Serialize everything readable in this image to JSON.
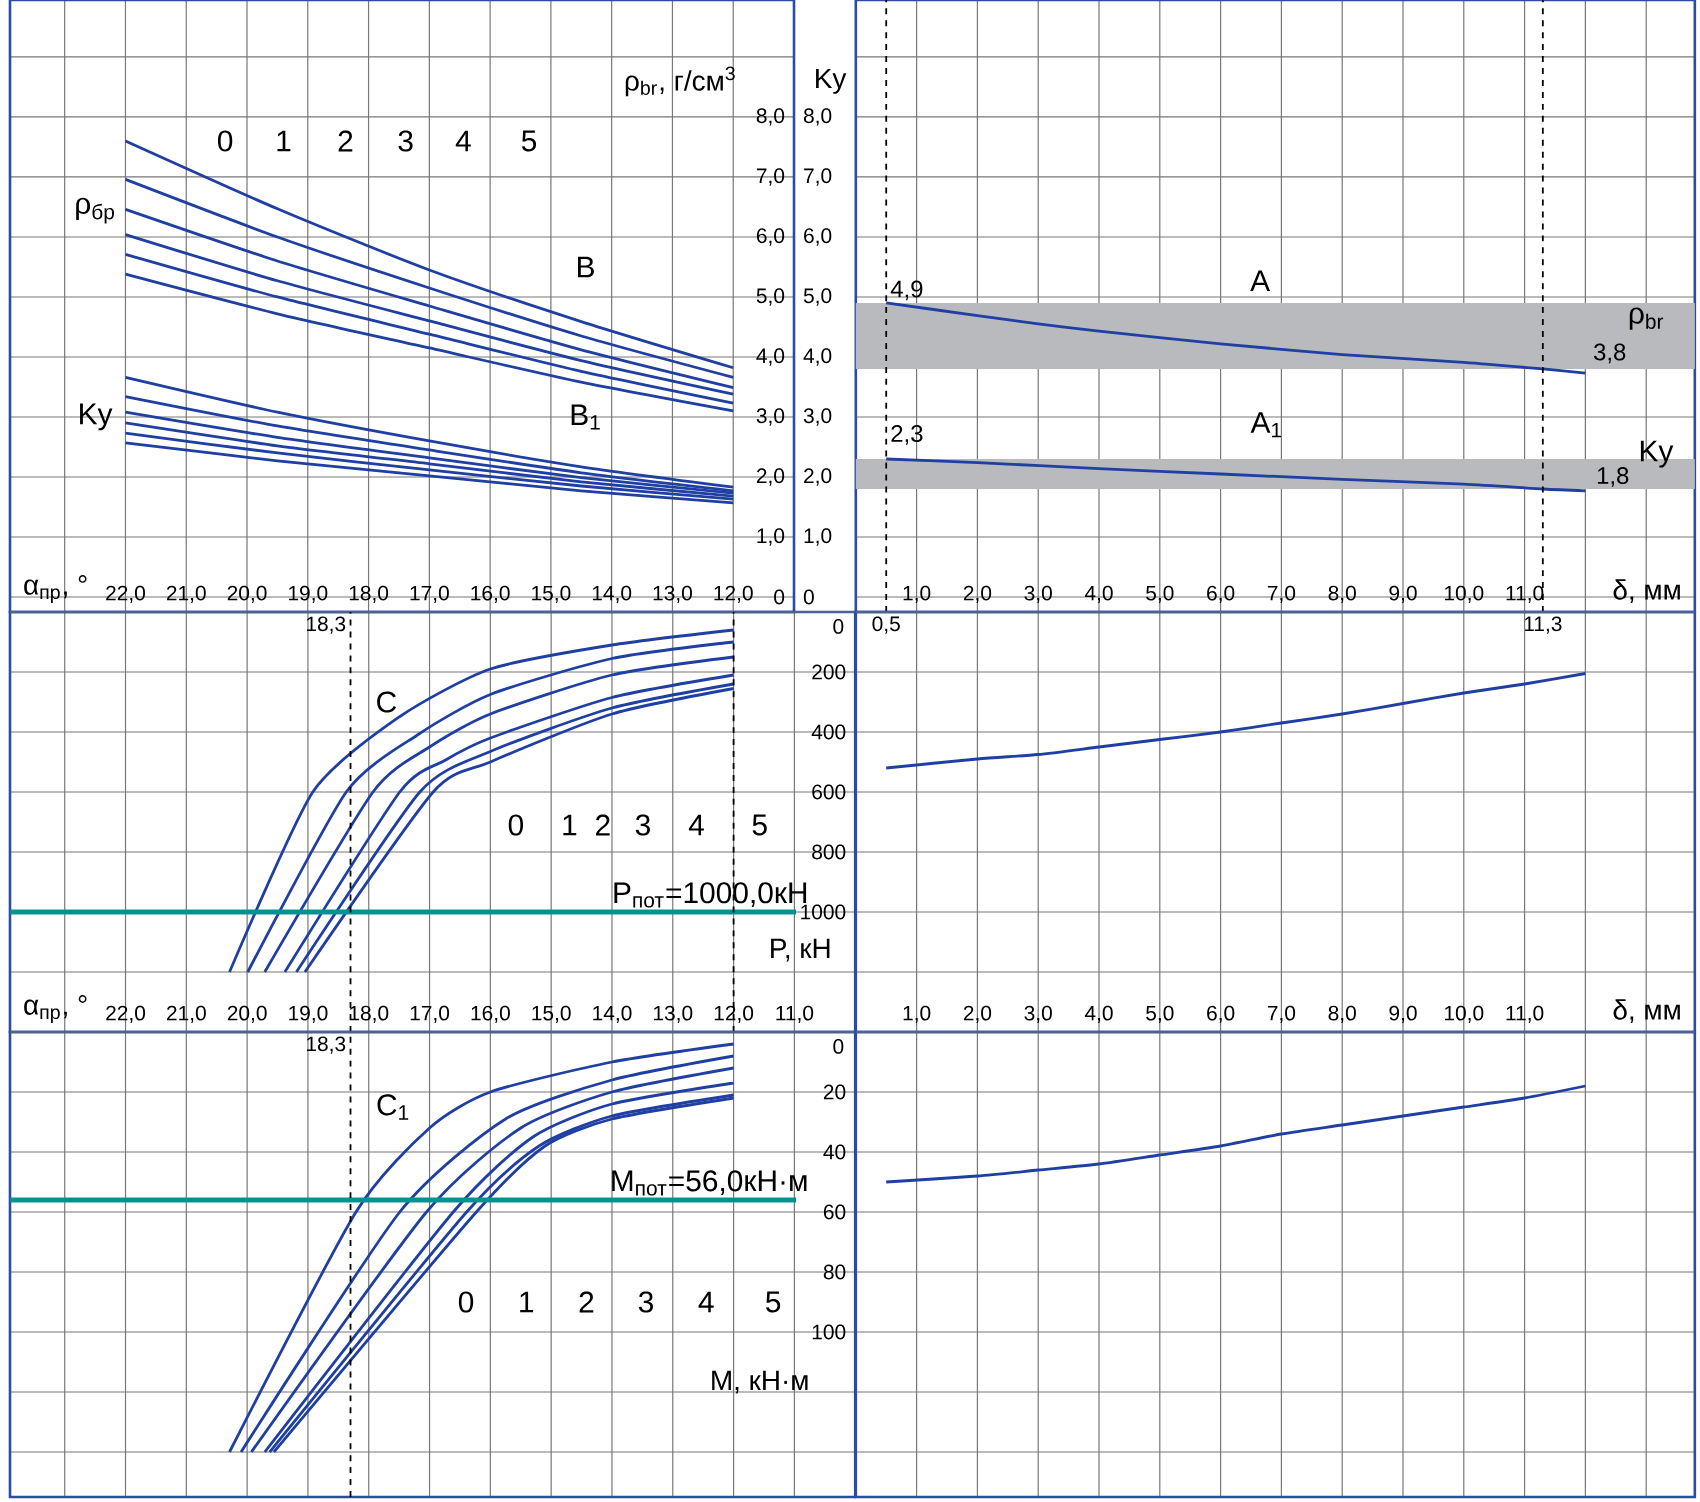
{
  "chart_data": [
    {
      "type": "line",
      "xlabel": "α$_{пр}$, °",
      "ylabel": "ρ$_{br}$, г/см$^{3}$",
      "y2label": "Ky",
      "grid": true,
      "marker": "none",
      "xlim": [
        23.9,
        11.0
      ],
      "ylim": [
        -0.25,
        9.95
      ],
      "y2lim": [
        -0.25,
        9.95
      ],
      "xticks": [
        {
          "value": 23,
          "label": null
        },
        {
          "value": 22,
          "label": "22,0"
        },
        {
          "value": 21,
          "label": "21,0"
        },
        {
          "value": 20,
          "label": "20,0"
        },
        {
          "value": 19,
          "label": "19,0"
        },
        {
          "value": 18,
          "label": "18,0"
        },
        {
          "value": 17,
          "label": "17,0"
        },
        {
          "value": 16,
          "label": "16,0"
        },
        {
          "value": 15,
          "label": "15,0"
        },
        {
          "value": 14,
          "label": "14,0"
        },
        {
          "value": 13,
          "label": "13,0"
        },
        {
          "value": 12,
          "label": "12,0"
        }
      ],
      "yticks": [
        0,
        {
          "value": 1,
          "label": "1,0"
        },
        {
          "value": 2,
          "label": "2,0"
        },
        {
          "value": 3,
          "label": "3,0"
        },
        {
          "value": 4,
          "label": "4,0"
        },
        {
          "value": 5,
          "label": "5,0"
        },
        {
          "value": 6,
          "label": "6,0"
        },
        {
          "value": 7,
          "label": "7,0"
        },
        {
          "value": 8,
          "label": "8,0"
        },
        {
          "value": 9,
          "label": null
        }
      ],
      "y2ticks": [
        0,
        {
          "value": 1,
          "label": "1,0"
        },
        {
          "value": 2,
          "label": "2,0"
        },
        {
          "value": 3,
          "label": "3,0"
        },
        {
          "value": 4,
          "label": "4,0"
        },
        {
          "value": 5,
          "label": "5,0"
        },
        {
          "value": 6,
          "label": "6,0"
        },
        {
          "value": 7,
          "label": "7,0"
        },
        {
          "value": 8,
          "label": "8,0"
        }
      ],
      "series": [
        {
          "color": "#1f3fa3",
          "x": [
            22,
            19.5,
            17,
            14.5,
            12
          ],
          "values": [
            7.6,
            6.47,
            5.45,
            4.59,
            3.82
          ]
        },
        {
          "color": "#1f3fa3",
          "x": [
            22,
            19.5,
            17,
            14.5,
            12
          ],
          "values": [
            6.96,
            6.0,
            5.15,
            4.35,
            3.66
          ]
        },
        {
          "color": "#1f3fa3",
          "x": [
            22,
            19.5,
            17,
            14.5,
            12
          ],
          "values": [
            6.46,
            5.6,
            4.85,
            4.12,
            3.49
          ]
        },
        {
          "color": "#1f3fa3",
          "x": [
            22,
            19.5,
            17,
            14.5,
            12
          ],
          "values": [
            6.04,
            5.27,
            4.6,
            3.94,
            3.38
          ]
        },
        {
          "color": "#1f3fa3",
          "x": [
            22,
            19.5,
            17,
            14.5,
            12
          ],
          "values": [
            5.71,
            5.0,
            4.38,
            3.76,
            3.23
          ]
        },
        {
          "color": "#1f3fa3",
          "x": [
            22,
            19.5,
            17,
            14.5,
            12
          ],
          "values": [
            5.38,
            4.72,
            4.15,
            3.58,
            3.1
          ]
        },
        {
          "color": "#1f3fa3",
          "axis": "y2",
          "x": [
            22,
            19.5,
            17,
            14.5,
            12
          ],
          "values": [
            3.66,
            3.08,
            2.6,
            2.17,
            1.83
          ]
        },
        {
          "color": "#1f3fa3",
          "axis": "y2",
          "x": [
            22,
            19.5,
            17,
            14.5,
            12
          ],
          "values": [
            3.34,
            2.85,
            2.45,
            2.07,
            1.77
          ]
        },
        {
          "color": "#1f3fa3",
          "axis": "y2",
          "x": [
            22,
            19.5,
            17,
            14.5,
            12
          ],
          "values": [
            3.08,
            2.66,
            2.32,
            1.99,
            1.73
          ]
        },
        {
          "color": "#1f3fa3",
          "axis": "y2",
          "x": [
            22,
            19.5,
            17,
            14.5,
            12
          ],
          "values": [
            2.9,
            2.52,
            2.22,
            1.92,
            1.68
          ]
        },
        {
          "color": "#1f3fa3",
          "axis": "y2",
          "x": [
            22,
            19.5,
            17,
            14.5,
            12
          ],
          "values": [
            2.73,
            2.4,
            2.12,
            1.85,
            1.63
          ]
        },
        {
          "color": "#1f3fa3",
          "axis": "y2",
          "x": [
            22,
            19.5,
            17,
            14.5,
            12
          ],
          "values": [
            2.57,
            2.27,
            2.02,
            1.77,
            1.57
          ]
        }
      ],
      "annotations": [
        "0",
        "1",
        "2",
        "3",
        "4",
        "5",
        "B",
        "B$_{1}$",
        "ρ$_{бр}$",
        "Ky"
      ]
    },
    {
      "type": "line",
      "xlabel": "δ, мм",
      "grid": true,
      "marker": "none",
      "tick_labels": "x",
      "xlim": [
        0,
        13.8
      ],
      "ylim": [
        -0.25,
        9.95
      ],
      "xticks": [
        {
          "value": 1,
          "label": "1,0"
        },
        {
          "value": 2,
          "label": "2,0"
        },
        {
          "value": 3,
          "label": "3,0"
        },
        {
          "value": 4,
          "label": "4,0"
        },
        {
          "value": 5,
          "label": "5,0"
        },
        {
          "value": 6,
          "label": "6,0"
        },
        {
          "value": 7,
          "label": "7,0"
        },
        {
          "value": 8,
          "label": "8,0"
        },
        {
          "value": 9,
          "label": "9,0"
        },
        {
          "value": 10,
          "label": "10,0"
        },
        {
          "value": 11,
          "label": "11,0"
        },
        {
          "value": 12,
          "label": null
        },
        {
          "value": 13,
          "label": null
        }
      ],
      "yticks": [
        0,
        1,
        2,
        3,
        4,
        5,
        6,
        7,
        8,
        9
      ],
      "series": [
        {
          "color": "#1f3fa3",
          "x": [
            0.5,
            2,
            3,
            4,
            6,
            8,
            10,
            11.3,
            12
          ],
          "values": [
            4.9,
            4.69,
            4.55,
            4.43,
            4.22,
            4.04,
            3.91,
            3.8,
            3.73
          ]
        },
        {
          "color": "#1f3fa3",
          "x": [
            0.5,
            2,
            4,
            6,
            8,
            10,
            11.3,
            12
          ],
          "values": [
            2.3,
            2.24,
            2.14,
            2.05,
            1.96,
            1.88,
            1.8,
            1.77
          ]
        }
      ],
      "bands": [
        {
          "axis": "y",
          "from": 3.8,
          "to": 4.9,
          "color": "#b9babd"
        },
        {
          "axis": "y",
          "from": 1.8,
          "to": 2.3,
          "color": "#b9babd"
        }
      ],
      "ref_lines": [
        {
          "axis": "x",
          "value": 0.5,
          "label": "0,5",
          "line_style": "dashed"
        },
        {
          "axis": "x",
          "value": 11.3,
          "label": "11,3",
          "line_style": "dashed"
        }
      ],
      "annotations": [
        "4,9",
        "3,8",
        "2,3",
        "1,8",
        "A",
        "A$_{1}$",
        "ρ$_{br}$",
        "Ky"
      ]
    },
    {
      "type": "line",
      "xlabel": "α$_{пр}$, °",
      "ylabel": "P, кН",
      "grid": true,
      "marker": "none",
      "xlim": [
        23.9,
        10.0
      ],
      "ylim": [
        1400,
        0
      ],
      "xticks": [
        {
          "value": 23,
          "label": null
        },
        {
          "value": 22,
          "label": "22,0"
        },
        {
          "value": 21,
          "label": "21,0"
        },
        {
          "value": 20,
          "label": "20,0"
        },
        {
          "value": 19,
          "label": "19,0"
        },
        {
          "value": 18,
          "label": "18,0"
        },
        {
          "value": 17,
          "label": "17,0"
        },
        {
          "value": 16,
          "label": "16,0"
        },
        {
          "value": 15,
          "label": "15,0"
        },
        {
          "value": 14,
          "label": "14,0"
        },
        {
          "value": 13,
          "label": "13,0"
        },
        {
          "value": 12,
          "label": "12,0"
        },
        {
          "value": 11,
          "label": "11,0"
        }
      ],
      "yticks": [
        0,
        200,
        400,
        600,
        800,
        1000,
        {
          "value": 1200,
          "label": null
        }
      ],
      "series": [
        {
          "color": "#1f3fa3",
          "x": [
            20.29,
            18.92,
            17.5,
            16,
            14,
            12
          ],
          "values": [
            1200,
            600,
            350,
            190,
            110,
            60
          ]
        },
        {
          "color": "#1f3fa3",
          "x": [
            19.99,
            18.37,
            17.2,
            16,
            14,
            12
          ],
          "values": [
            1200,
            600,
            410,
            275,
            155,
            100
          ]
        },
        {
          "color": "#1f3fa3",
          "x": [
            19.71,
            17.93,
            17.0,
            16,
            14,
            12
          ],
          "values": [
            1200,
            600,
            450,
            340,
            210,
            150
          ]
        },
        {
          "color": "#1f3fa3",
          "x": [
            19.38,
            17.49,
            16.75,
            16,
            14,
            12
          ],
          "values": [
            1200,
            600,
            495,
            420,
            285,
            210
          ]
        },
        {
          "color": "#1f3fa3",
          "x": [
            19.19,
            17.16,
            16,
            14,
            12
          ],
          "values": [
            1200,
            600,
            465,
            320,
            240
          ]
        },
        {
          "color": "#1f3fa3",
          "x": [
            19.05,
            16.94,
            16,
            14,
            12
          ],
          "values": [
            1200,
            600,
            500,
            340,
            255
          ]
        }
      ],
      "ref_lines": [
        {
          "axis": "y",
          "value": 1000,
          "label": "P$_{пот}$=1000,0кН",
          "color": "#00938f"
        },
        {
          "axis": "x",
          "value": 18.3,
          "label": "18,3",
          "line_style": "dashed"
        },
        {
          "axis": "x",
          "value": 12,
          "line_style": "dashed"
        }
      ],
      "annotations": [
        "C",
        "0",
        "1",
        "2",
        "3",
        "4",
        "5"
      ]
    },
    {
      "type": "line",
      "xlabel": "δ, мм",
      "grid": true,
      "marker": "none",
      "tick_labels": "x",
      "xlim": [
        0,
        13.8
      ],
      "ylim": [
        1400,
        0
      ],
      "xticks": [
        {
          "value": 1,
          "label": "1,0"
        },
        {
          "value": 2,
          "label": "2,0"
        },
        {
          "value": 3,
          "label": "3,0"
        },
        {
          "value": 4,
          "label": "4,0"
        },
        {
          "value": 5,
          "label": "5,0"
        },
        {
          "value": 6,
          "label": "6,0"
        },
        {
          "value": 7,
          "label": "7,0"
        },
        {
          "value": 8,
          "label": "8,0"
        },
        {
          "value": 9,
          "label": "9,0"
        },
        {
          "value": 10,
          "label": "10,0"
        },
        {
          "value": 11,
          "label": "11,0"
        },
        {
          "value": 12,
          "label": null
        },
        {
          "value": 13,
          "label": null
        }
      ],
      "yticks": [
        0,
        200,
        400,
        600,
        800,
        1000,
        {
          "value": 1200,
          "label": null
        }
      ],
      "series": [
        {
          "color": "#1f3fa3",
          "x": [
            0.5,
            2,
            3,
            4,
            5,
            6,
            7,
            8,
            9,
            10,
            11,
            12
          ],
          "values": [
            520,
            490,
            475,
            450,
            425,
            400,
            370,
            340,
            305,
            270,
            240,
            205
          ]
        }
      ]
    },
    {
      "type": "line",
      "ylabel": "M, кН·м",
      "grid": true,
      "marker": "none",
      "tick_labels": "y",
      "xlim": [
        23.9,
        10.0
      ],
      "ylim": [
        155,
        0
      ],
      "xticks": [
        23,
        22,
        21,
        20,
        19,
        18,
        17,
        16,
        15,
        14,
        13,
        12,
        11
      ],
      "yticks": [
        0,
        20,
        40,
        60,
        80,
        100,
        {
          "value": 120,
          "label": null
        },
        {
          "value": 140,
          "label": null
        }
      ],
      "series": [
        {
          "color": "#1f3fa3",
          "x": [
            20.29,
            18.21,
            17,
            16,
            14,
            12
          ],
          "values": [
            140,
            60,
            32,
            20,
            10,
            4
          ]
        },
        {
          "color": "#1f3fa3",
          "x": [
            20.1,
            17.49,
            15.75,
            14,
            12
          ],
          "values": [
            140,
            60,
            29,
            16,
            8
          ]
        },
        {
          "color": "#1f3fa3",
          "x": [
            19.93,
            17.05,
            15.5,
            14,
            12
          ],
          "values": [
            140,
            60,
            32,
            20,
            12
          ]
        },
        {
          "color": "#1f3fa3",
          "x": [
            19.71,
            16.61,
            15.3,
            14,
            12
          ],
          "values": [
            140,
            60,
            35,
            24,
            17
          ]
        },
        {
          "color": "#1f3fa3",
          "x": [
            19.63,
            16.39,
            15.2,
            14,
            12
          ],
          "values": [
            140,
            60,
            38,
            28,
            21
          ]
        },
        {
          "color": "#1f3fa3",
          "x": [
            19.56,
            16.23,
            15.1,
            14,
            12
          ],
          "values": [
            140,
            60,
            38,
            29,
            22
          ]
        }
      ],
      "ref_lines": [
        {
          "axis": "y",
          "value": 56,
          "label": "M$_{пот}$=56,0кН·м",
          "color": "#00938f"
        },
        {
          "axis": "x",
          "value": 18.3,
          "label": "18,3",
          "line_style": "dashed"
        }
      ],
      "annotations": [
        "C$_{1}$",
        "0",
        "1",
        "2",
        "3",
        "4",
        "5"
      ]
    },
    {
      "type": "line",
      "grid": true,
      "marker": "none",
      "tick_labels": false,
      "xlim": [
        0,
        13.8
      ],
      "ylim": [
        155,
        0
      ],
      "xticks": [
        1,
        2,
        3,
        4,
        5,
        6,
        7,
        8,
        9,
        10,
        11,
        12,
        13
      ],
      "yticks": [
        0,
        20,
        40,
        60,
        80,
        100,
        120,
        140
      ],
      "series": [
        {
          "color": "#1f3fa3",
          "x": [
            0.5,
            2,
            3,
            4,
            5,
            6,
            7,
            8,
            9,
            10,
            11,
            12
          ],
          "values": [
            50,
            48,
            46,
            44,
            41,
            38,
            34,
            31,
            28,
            25,
            22,
            18
          ]
        }
      ]
    }
  ]
}
